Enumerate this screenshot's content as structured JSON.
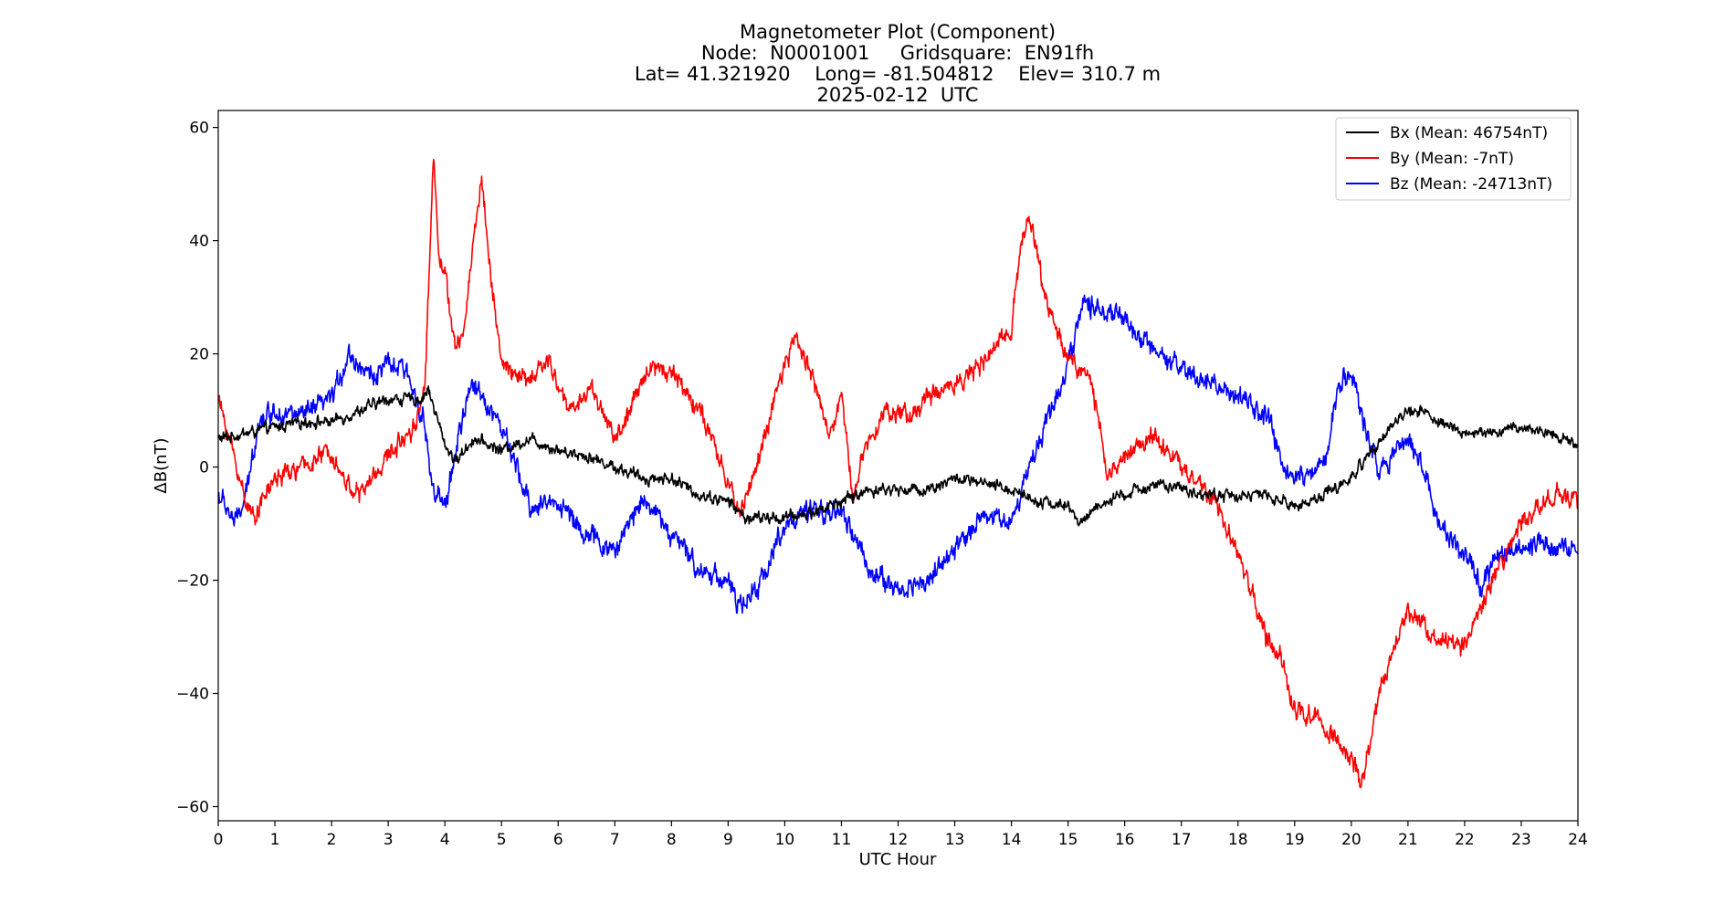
{
  "chart_data": {
    "type": "line",
    "title_lines": [
      "Magnetometer Plot (Component)",
      "Node:  N0001001     Gridsquare:  EN91fh",
      "Lat= 41.321920    Long= -81.504812    Elev= 310.7 m",
      "2025-02-12  UTC"
    ],
    "xlabel": "UTC Hour",
    "ylabel": "ΔB(nT)",
    "xlim": [
      0,
      24
    ],
    "ylim": [
      -62.5,
      63
    ],
    "xticks": [
      0,
      1,
      2,
      3,
      4,
      5,
      6,
      7,
      8,
      9,
      10,
      11,
      12,
      13,
      14,
      15,
      16,
      17,
      18,
      19,
      20,
      21,
      22,
      23,
      24
    ],
    "yticks": [
      -60,
      -40,
      -20,
      0,
      20,
      40,
      60
    ],
    "ytick_labels": [
      "−60",
      "−40",
      "−20",
      "0",
      "20",
      "40",
      "60"
    ],
    "grid": false,
    "legend_position": "top-right",
    "series": [
      {
        "name": "Bx (Mean: 46754nT)",
        "color": "#000000",
        "noise": 1.0,
        "x": [
          0,
          0.5,
          1,
          1.5,
          2,
          2.5,
          3,
          3.3,
          3.6,
          3.7,
          4,
          4.2,
          4.5,
          5,
          5.5,
          6,
          6.5,
          7,
          7.5,
          8,
          8.5,
          9,
          9.3,
          9.5,
          10,
          10.5,
          11,
          11.5,
          12,
          12.5,
          13,
          13.5,
          14,
          14.5,
          15,
          15.2,
          15.5,
          16,
          16.5,
          17,
          17.5,
          18,
          18.5,
          19,
          19.5,
          20,
          20.5,
          21,
          21.3,
          21.5,
          22,
          22.5,
          23,
          23.5,
          24
        ],
        "y": [
          5,
          6,
          7,
          8,
          8,
          10,
          12,
          12,
          12,
          14,
          4,
          1,
          5,
          3,
          5,
          3,
          2,
          0,
          -2,
          -2,
          -5,
          -6,
          -9,
          -9,
          -9,
          -8,
          -6,
          -4,
          -4,
          -4,
          -2,
          -3,
          -4,
          -6,
          -7,
          -10,
          -7,
          -5,
          -3,
          -4,
          -5,
          -5,
          -5,
          -7,
          -5,
          -2,
          5,
          10,
          10,
          8,
          6,
          6,
          7,
          6,
          4
        ]
      },
      {
        "name": "By (Mean: -7nT)",
        "color": "#ff0000",
        "noise": 1.6,
        "x": [
          0,
          0.2,
          0.4,
          0.6,
          1,
          1.5,
          2,
          2.2,
          2.5,
          3,
          3.5,
          3.65,
          3.8,
          3.9,
          4,
          4.2,
          4.35,
          4.5,
          4.65,
          4.8,
          5,
          5.5,
          5.8,
          6.2,
          6.6,
          7,
          7.2,
          7.6,
          8,
          8.5,
          9,
          9.2,
          9.5,
          10,
          10.2,
          10.5,
          10.8,
          11,
          11.2,
          11.5,
          11.8,
          12.2,
          12.5,
          13,
          13.5,
          14,
          14.15,
          14.3,
          14.6,
          15,
          15.4,
          15.7,
          16,
          16.5,
          17,
          17.5,
          18,
          18.5,
          18.8,
          19,
          19.5,
          20,
          20.2,
          20.5,
          21,
          21.5,
          22,
          22.5,
          23,
          23.5,
          24
        ],
        "y": [
          12,
          5,
          -3,
          -9,
          -2,
          0,
          3,
          -2,
          -5,
          2,
          8,
          15,
          55,
          38,
          34,
          20,
          25,
          40,
          51,
          35,
          18,
          15,
          19,
          10,
          14,
          5,
          8,
          18,
          17,
          10,
          -3,
          -8,
          0,
          18,
          23,
          16,
          5,
          13,
          -5,
          6,
          10,
          9,
          12,
          15,
          18,
          25,
          38,
          45,
          30,
          19,
          16,
          -2,
          2,
          6,
          0,
          -5,
          -15,
          -30,
          -35,
          -43,
          -45,
          -52,
          -56,
          -40,
          -25,
          -30,
          -32,
          -20,
          -10,
          -5,
          -6
        ]
      },
      {
        "name": "Bz (Mean: -24713nT)",
        "color": "#0000ff",
        "noise": 1.8,
        "x": [
          0,
          0.2,
          0.3,
          0.5,
          0.7,
          1,
          1.5,
          2,
          2.3,
          2.7,
          3,
          3.3,
          3.6,
          3.8,
          4,
          4.3,
          4.5,
          4.7,
          5,
          5.5,
          6,
          6.5,
          7,
          7.5,
          8,
          8.5,
          9,
          9.2,
          9.5,
          10,
          10.5,
          11,
          11.5,
          12,
          12.5,
          13,
          13.5,
          14,
          14.2,
          14.5,
          15,
          15.3,
          15.5,
          16,
          16.5,
          17,
          17.5,
          18,
          18.5,
          18.8,
          19,
          19.5,
          19.8,
          20,
          20.2,
          20.5,
          21,
          21.3,
          21.5,
          22,
          22.3,
          22.5,
          23,
          23.5,
          24
        ],
        "y": [
          -5,
          -8,
          -10,
          -5,
          8,
          10,
          9,
          12,
          20,
          16,
          18,
          17,
          10,
          -5,
          -7,
          8,
          15,
          12,
          7,
          -7,
          -6,
          -12,
          -15,
          -5,
          -12,
          -18,
          -20,
          -25,
          -22,
          -10,
          -8,
          -8,
          -18,
          -22,
          -20,
          -15,
          -8,
          -10,
          -3,
          5,
          18,
          30,
          28,
          26,
          20,
          17,
          15,
          12,
          9,
          0,
          -2,
          0,
          15,
          17,
          8,
          0,
          5,
          0,
          -10,
          -15,
          -22,
          -16,
          -15,
          -13,
          -15
        ]
      }
    ]
  }
}
